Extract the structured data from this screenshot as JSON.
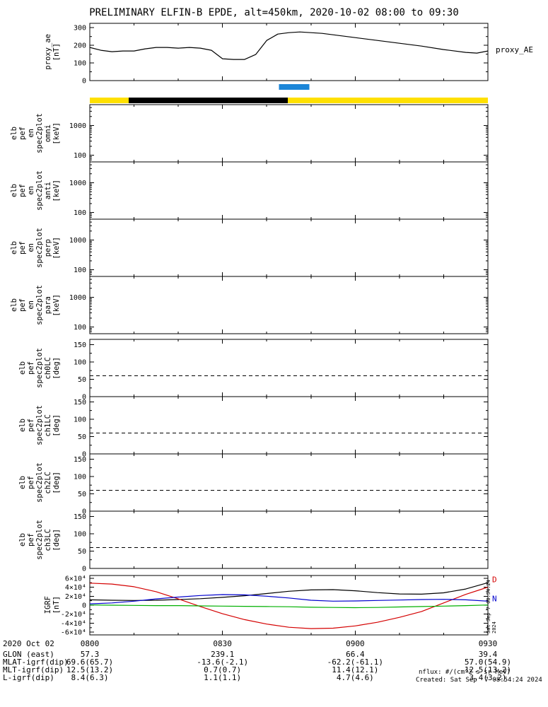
{
  "title": "PRELIMINARY ELFIN-B EPDE, alt=450km, 2020-10-02 08:00 to 09:30",
  "xaxis": {
    "date_label": "2020 Oct 02",
    "tick_minutes": [
      0,
      30,
      60,
      90
    ],
    "ticks": [
      "0800",
      "0830",
      "0900",
      "0930"
    ]
  },
  "ephemeris_rows": [
    {
      "label": "GLON (east)",
      "values": [
        "57.3",
        "239.1",
        "66.4",
        "39.4"
      ]
    },
    {
      "label": "MLAT-igrf(dip)",
      "values": [
        "69.6(65.7)",
        "-13.6(-2.1)",
        "-62.2(-61.1)",
        "57.0(54.9)"
      ]
    },
    {
      "label": "MLT-igrf(dip)",
      "values": [
        "12.5(13.2)",
        "0.7(0.7)",
        "11.4(12.1)",
        "12.5(13.2)"
      ]
    },
    {
      "label": "L-igrf(dip)",
      "values": [
        "8.4(6.3)",
        "1.1(1.1)",
        "4.7(4.6)",
        "3.4(3.2)"
      ]
    }
  ],
  "footer": {
    "nflux": "nflux: #/(cm^2 s sr MeV)",
    "created": "Created: Sat Sep  7 08:54:24 2024",
    "side_timestamp": "Sat Sep  7 08:54:24 2024"
  },
  "chart_data": [
    {
      "id": "proxy_ae",
      "type": "line",
      "ylabel_words": [
        "proxy_ae",
        "[nT]"
      ],
      "right_label": "proxy_AE",
      "yscale": "linear",
      "ylim": [
        0,
        325
      ],
      "yticks": [
        0,
        100,
        200,
        300
      ],
      "ytick_labels": [
        "0",
        "100",
        "200",
        "300"
      ],
      "yminor": 50,
      "x": [
        0,
        2.5,
        5,
        7.5,
        10,
        12.5,
        15,
        17.5,
        20,
        22.5,
        25,
        27.5,
        30,
        32.5,
        35,
        37.5,
        40,
        42.5,
        45,
        47.5,
        50,
        52.5,
        55,
        60,
        65,
        70,
        75,
        80,
        85,
        87.5,
        90
      ],
      "series": [
        {
          "name": "proxy_AE",
          "color": "#000000",
          "values": [
            188,
            172,
            164,
            168,
            168,
            180,
            188,
            188,
            184,
            188,
            184,
            172,
            124,
            120,
            120,
            148,
            228,
            264,
            272,
            276,
            272,
            268,
            260,
            244,
            228,
            212,
            196,
            176,
            160,
            156,
            168
          ]
        }
      ]
    },
    {
      "id": "fast_bar",
      "type": "bars",
      "segments": [
        {
          "start_min": 42.8,
          "end_min": 49.6,
          "color": "#1c86d8"
        }
      ]
    },
    {
      "id": "orbit_bar",
      "type": "bars",
      "segments": [
        {
          "start_min": 0,
          "end_min": 8.8,
          "color": "#ffe000"
        },
        {
          "start_min": 8.8,
          "end_min": 44.8,
          "color": "#000000"
        },
        {
          "start_min": 44.8,
          "end_min": 90,
          "color": "#ffe000"
        }
      ]
    },
    {
      "id": "spec_omni",
      "type": "spectrogram",
      "ylabel_words": [
        "elb",
        "pef",
        "en",
        "spec2plot",
        "omni",
        "[keV]"
      ],
      "yscale": "log",
      "ylim": [
        60,
        5000
      ],
      "yticks": [
        100,
        1000
      ],
      "ytick_labels": [
        "100",
        "1000"
      ],
      "series": []
    },
    {
      "id": "spec_anti",
      "type": "spectrogram",
      "ylabel_words": [
        "elb",
        "pef",
        "en",
        "spec2plot",
        "anti",
        "[keV]"
      ],
      "yscale": "log",
      "ylim": [
        60,
        5000
      ],
      "yticks": [
        100,
        1000
      ],
      "ytick_labels": [
        "100",
        "1000"
      ],
      "series": []
    },
    {
      "id": "spec_perp",
      "type": "spectrogram",
      "ylabel_words": [
        "elb",
        "pef",
        "en",
        "spec2plot",
        "perp",
        "[keV]"
      ],
      "yscale": "log",
      "ylim": [
        60,
        5000
      ],
      "yticks": [
        100,
        1000
      ],
      "ytick_labels": [
        "100",
        "1000"
      ],
      "series": []
    },
    {
      "id": "spec_para",
      "type": "spectrogram",
      "ylabel_words": [
        "elb",
        "pef",
        "en",
        "spec2plot",
        "para",
        "[keV]"
      ],
      "yscale": "log",
      "ylim": [
        60,
        5000
      ],
      "yticks": [
        100,
        1000
      ],
      "ytick_labels": [
        "100",
        "1000"
      ],
      "series": []
    },
    {
      "id": "lc_ch0",
      "type": "line",
      "ylabel_words": [
        "elb",
        "pef",
        "spec2plot",
        "ch0LC",
        "[deg]"
      ],
      "yscale": "linear",
      "ylim": [
        0,
        165
      ],
      "yticks": [
        0,
        50,
        100,
        150
      ],
      "ytick_labels": [
        "0",
        "50",
        "100",
        "150"
      ],
      "yminor": 25,
      "dashed_reference": 60,
      "series": []
    },
    {
      "id": "lc_ch1",
      "type": "line",
      "ylabel_words": [
        "elb",
        "pef",
        "spec2plot",
        "ch1LC",
        "[deg]"
      ],
      "yscale": "linear",
      "ylim": [
        0,
        165
      ],
      "yticks": [
        0,
        50,
        100,
        150
      ],
      "ytick_labels": [
        "0",
        "50",
        "100",
        "150"
      ],
      "yminor": 25,
      "dashed_reference": 60,
      "series": []
    },
    {
      "id": "lc_ch2",
      "type": "line",
      "ylabel_words": [
        "elb",
        "pef",
        "spec2plot",
        "ch2LC",
        "[deg]"
      ],
      "yscale": "linear",
      "ylim": [
        0,
        165
      ],
      "yticks": [
        0,
        50,
        100,
        150
      ],
      "ytick_labels": [
        "0",
        "50",
        "100",
        "150"
      ],
      "yminor": 25,
      "dashed_reference": 60,
      "series": []
    },
    {
      "id": "lc_ch3",
      "type": "line",
      "ylabel_words": [
        "elb",
        "pef",
        "spec2plot",
        "ch3LC",
        "[deg]"
      ],
      "yscale": "linear",
      "ylim": [
        0,
        165
      ],
      "yticks": [
        0,
        50,
        100,
        150
      ],
      "ytick_labels": [
        "0",
        "50",
        "100",
        "150"
      ],
      "yminor": 25,
      "dashed_reference": 60,
      "series": []
    },
    {
      "id": "igrf",
      "type": "line",
      "ylabel_words": [
        "IGRF",
        "[nT]"
      ],
      "yscale": "linear",
      "ylim": [
        -66000,
        66000
      ],
      "yticks": [
        -60000,
        -40000,
        -20000,
        0,
        20000,
        40000,
        60000
      ],
      "ytick_labels": [
        "-6×10⁴",
        "-4×10⁴",
        "-2×10⁴",
        "0",
        "2×10⁴",
        "4×10⁴",
        "6×10⁴"
      ],
      "yminor": 10000,
      "x": [
        0,
        5,
        10,
        15,
        20,
        25,
        30,
        35,
        40,
        45,
        50,
        55,
        60,
        65,
        70,
        75,
        80,
        85,
        90
      ],
      "series": [
        {
          "name": "black",
          "color": "#000000",
          "values": [
            12000,
            11000,
            10500,
            11000,
            12500,
            14500,
            17500,
            21000,
            26000,
            31000,
            34000,
            34500,
            32000,
            28000,
            25000,
            24500,
            27500,
            36000,
            50000
          ]
        },
        {
          "name": "D",
          "color": "#d40000",
          "values": [
            49000,
            47000,
            41000,
            30000,
            14000,
            -3000,
            -19000,
            -32000,
            -42000,
            -49000,
            -52000,
            -51000,
            -46000,
            -38000,
            -27000,
            -14000,
            5000,
            24000,
            40000
          ]
        },
        {
          "name": "N",
          "color": "#0000cd",
          "values": [
            3000,
            5000,
            9000,
            14000,
            18000,
            21500,
            23500,
            23000,
            20000,
            16000,
            11000,
            9000,
            9500,
            10500,
            11500,
            12500,
            13000,
            12000,
            9000
          ]
        },
        {
          "name": "E",
          "color": "#00b000",
          "values": [
            500,
            0,
            -500,
            -1000,
            -1000,
            -1500,
            -2000,
            -2500,
            -3000,
            -3500,
            -4500,
            -5000,
            -5500,
            -5000,
            -4000,
            -3000,
            -2000,
            -1000,
            500
          ]
        }
      ],
      "right_labels": [
        {
          "label": "D",
          "color": "#d40000",
          "y_value": 57000
        },
        {
          "label": "N",
          "color": "#0000cd",
          "y_value": 15000
        }
      ]
    }
  ]
}
